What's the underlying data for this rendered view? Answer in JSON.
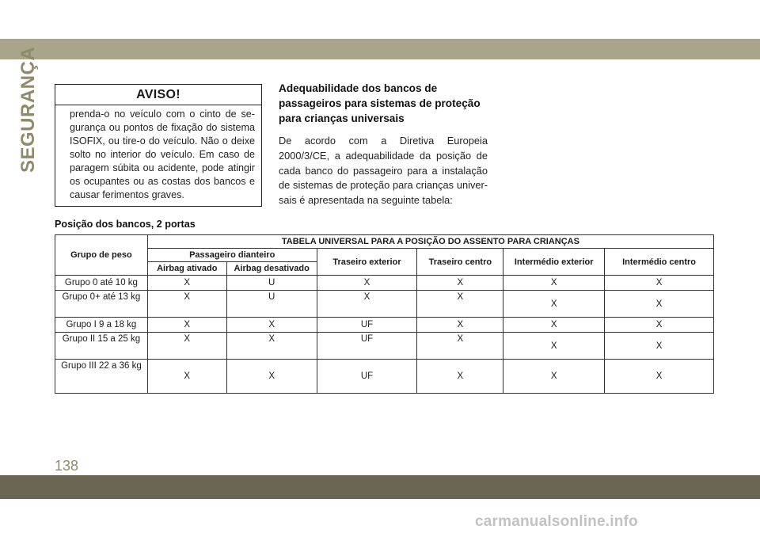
{
  "section_label": "SEGURANÇA",
  "warning": {
    "title": "AVISO!",
    "text": "prenda-o no veículo com o cinto de se­gurança ou pontos de fixação do sistema ISOFIX, ou tire-o do veículo. Não o deixe solto no interior do veículo. Em caso de paragem súbita ou acidente, pode atin­gir os ocupantes ou as costas dos bancos e causar ferimentos graves."
  },
  "section": {
    "heading": "Adequabilidade dos bancos de passageiros para sistemas de proteção para crianças universais",
    "body": "De acordo com a Diretiva Europeia 2000/3/CE, a adequabilidade da posição de cada banco do passageiro para a instalação de sistemas de proteção para crianças univer­sais é apresentada na seguinte tabela:"
  },
  "table_caption": "Posição dos bancos, 2 portas",
  "table": {
    "title": "TABELA UNIVERSAL PARA A POSIÇÃO DO ASSENTO PARA CRIANÇAS",
    "col_group": "Grupo de peso",
    "col_front": "Passageiro dianteiro",
    "col_airbag_on": "Airbag ativado",
    "col_airbag_off": "Airbag desativado",
    "col_rear_outer": "Traseiro exterior",
    "col_rear_center": "Traseiro centro",
    "col_mid_outer": "Intermédio exterior",
    "col_mid_center": "Intermédio centro",
    "rows": [
      {
        "group": "Grupo 0 até 10 kg",
        "on": "X",
        "off": "U",
        "rear_outer": "X",
        "rear_center": "X",
        "mid_outer": "X",
        "mid_center": "X"
      },
      {
        "group": "Grupo 0+ até 13 kg",
        "on": "X",
        "off": "U",
        "rear_outer": "X",
        "rear_center": "X",
        "mid_outer": "X",
        "mid_center": "X"
      },
      {
        "group": "Grupo I 9 a 18 kg",
        "on": "X",
        "off": "X",
        "rear_outer": "UF",
        "rear_center": "X",
        "mid_outer": "X",
        "mid_center": "X"
      },
      {
        "group": "Grupo II 15 a 25 kg",
        "on": "X",
        "off": "X",
        "rear_outer": "UF",
        "rear_center": "X",
        "mid_outer": "X",
        "mid_center": "X"
      },
      {
        "group": "Grupo III 22 a 36 kg",
        "on": "X",
        "off": "X",
        "rear_outer": "UF",
        "rear_center": "X",
        "mid_outer": "X",
        "mid_center": "X"
      }
    ]
  },
  "page_number": "138",
  "watermark": "carmanualsonline.info"
}
